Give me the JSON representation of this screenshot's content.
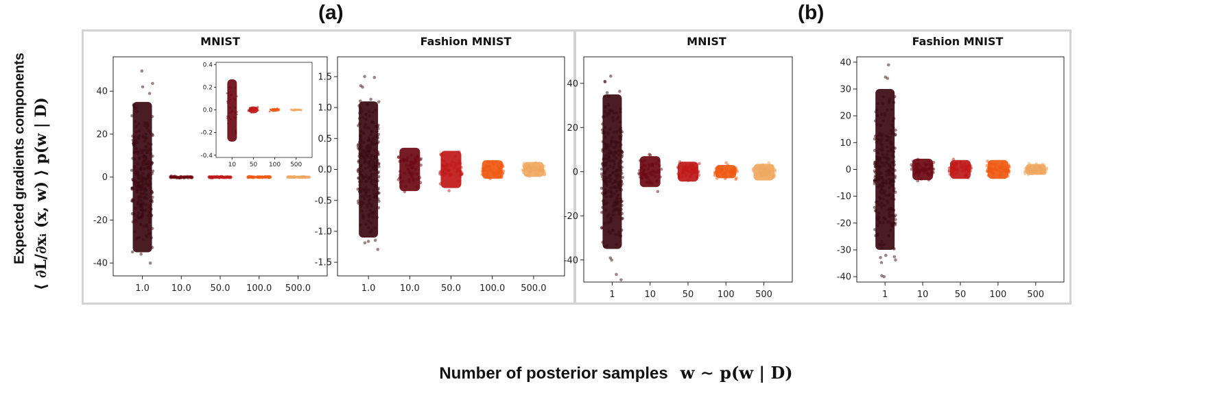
{
  "panel_labels": {
    "a": "(a)",
    "b": "(b)"
  },
  "ylabel": {
    "line1": "Expected gradients components",
    "line2": "⟨ ∂L/∂xᵢ (x, w) ⟩ p(w | D)"
  },
  "xlabel": {
    "text": "Number of posterior samples",
    "math": "w ∼ p(w | D)"
  },
  "colors": [
    "#3a0a10",
    "#6b0812",
    "#c01818",
    "#ef5a12",
    "#f0a860"
  ],
  "chart_data": [
    {
      "type": "scatter",
      "panel": "(a)",
      "title": "MNIST",
      "categories": [
        "1.0",
        "10.0",
        "50.0",
        "100.0",
        "500.0"
      ],
      "ylim": [
        -46,
        56
      ],
      "yticks": [
        -40,
        -20,
        0,
        20,
        40
      ],
      "spread": [
        {
          "min": -44,
          "max": 55,
          "core_min": -35,
          "core_max": 35
        },
        {
          "min": -0.5,
          "max": 0.5,
          "core_min": -0.4,
          "core_max": 0.4
        },
        {
          "min": -0.4,
          "max": 0.4,
          "core_min": -0.3,
          "core_max": 0.3
        },
        {
          "min": -0.3,
          "max": 0.3,
          "core_min": -0.2,
          "core_max": 0.2
        },
        {
          "min": -0.2,
          "max": 0.2,
          "core_min": -0.1,
          "core_max": 0.1
        }
      ],
      "inset": {
        "categories": [
          "10",
          "50",
          "100",
          "500"
        ],
        "ylim": [
          -0.42,
          0.42
        ],
        "yticks": [
          -0.4,
          -0.2,
          0.0,
          0.2,
          0.4
        ],
        "ytick_labels": [
          "-0.4",
          "-0.2",
          "0.0",
          "0.2",
          "0.4"
        ],
        "spread": [
          {
            "min": -0.38,
            "max": 0.37,
            "core_min": -0.28,
            "core_max": 0.27
          },
          {
            "min": -0.04,
            "max": 0.04,
            "core_min": -0.03,
            "core_max": 0.03
          },
          {
            "min": -0.02,
            "max": 0.02,
            "core_min": -0.015,
            "core_max": 0.015
          },
          {
            "min": -0.01,
            "max": 0.01,
            "core_min": -0.008,
            "core_max": 0.008
          }
        ]
      }
    },
    {
      "type": "scatter",
      "panel": "(a)",
      "title": "Fashion MNIST",
      "categories": [
        "1.0",
        "10.0",
        "50.0",
        "100.0",
        "500.0"
      ],
      "ylim": [
        -1.72,
        1.82
      ],
      "yticks": [
        -1.5,
        -1.0,
        -0.5,
        0.0,
        0.5,
        1.0,
        1.5
      ],
      "ytick_labels": [
        "-1.5",
        "-1.0",
        "-0.5",
        "0.0",
        "0.5",
        "1.0",
        "1.5"
      ],
      "spread": [
        {
          "min": -1.62,
          "max": 1.73,
          "core_min": -1.1,
          "core_max": 1.1
        },
        {
          "min": -0.45,
          "max": 0.42,
          "core_min": -0.35,
          "core_max": 0.35
        },
        {
          "min": -0.35,
          "max": 0.38,
          "core_min": -0.3,
          "core_max": 0.3
        },
        {
          "min": -0.2,
          "max": 0.2,
          "core_min": -0.15,
          "core_max": 0.15
        },
        {
          "min": -0.15,
          "max": 0.15,
          "core_min": -0.12,
          "core_max": 0.12
        }
      ]
    },
    {
      "type": "scatter",
      "panel": "(b)",
      "title": "MNIST",
      "categories": [
        "1",
        "10",
        "50",
        "100",
        "500"
      ],
      "ylim": [
        -50,
        52
      ],
      "yticks": [
        -40,
        -20,
        0,
        20,
        40
      ],
      "spread": [
        {
          "min": -49,
          "max": 50,
          "core_min": -35,
          "core_max": 35
        },
        {
          "min": -9,
          "max": 9,
          "core_min": -7,
          "core_max": 7
        },
        {
          "min": -6,
          "max": 5,
          "core_min": -4.5,
          "core_max": 4.5
        },
        {
          "min": -4,
          "max": 4,
          "core_min": -3,
          "core_max": 3
        },
        {
          "min": -5,
          "max": 4,
          "core_min": -4,
          "core_max": 3.5
        }
      ]
    },
    {
      "type": "scatter",
      "panel": "(b)",
      "title": "Fashion MNIST",
      "categories": [
        "1",
        "10",
        "50",
        "100",
        "500"
      ],
      "ylim": [
        -42,
        42
      ],
      "yticks": [
        -40,
        -30,
        -20,
        -10,
        0,
        10,
        20,
        30,
        40
      ],
      "spread": [
        {
          "min": -40,
          "max": 39,
          "core_min": -30,
          "core_max": 30
        },
        {
          "min": -5,
          "max": 5,
          "core_min": -4,
          "core_max": 4
        },
        {
          "min": -4,
          "max": 4,
          "core_min": -3.5,
          "core_max": 3.5
        },
        {
          "min": -4,
          "max": 4,
          "core_min": -3.5,
          "core_max": 3.5
        },
        {
          "min": -3,
          "max": 3,
          "core_min": -2,
          "core_max": 2
        }
      ]
    }
  ]
}
